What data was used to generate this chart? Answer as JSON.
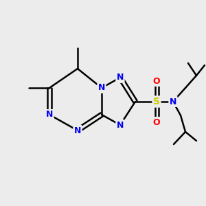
{
  "background_color": "#ececec",
  "bond_color": "#000000",
  "nitrogen_color": "#0000ee",
  "sulfur_color": "#cccc00",
  "oxygen_color": "#ff0000",
  "carbon_color": "#000000",
  "line_width": 1.8,
  "figsize": [
    3.0,
    3.0
  ],
  "dpi": 100,
  "xlim": [
    0,
    12
  ],
  "ylim": [
    0,
    12
  ]
}
